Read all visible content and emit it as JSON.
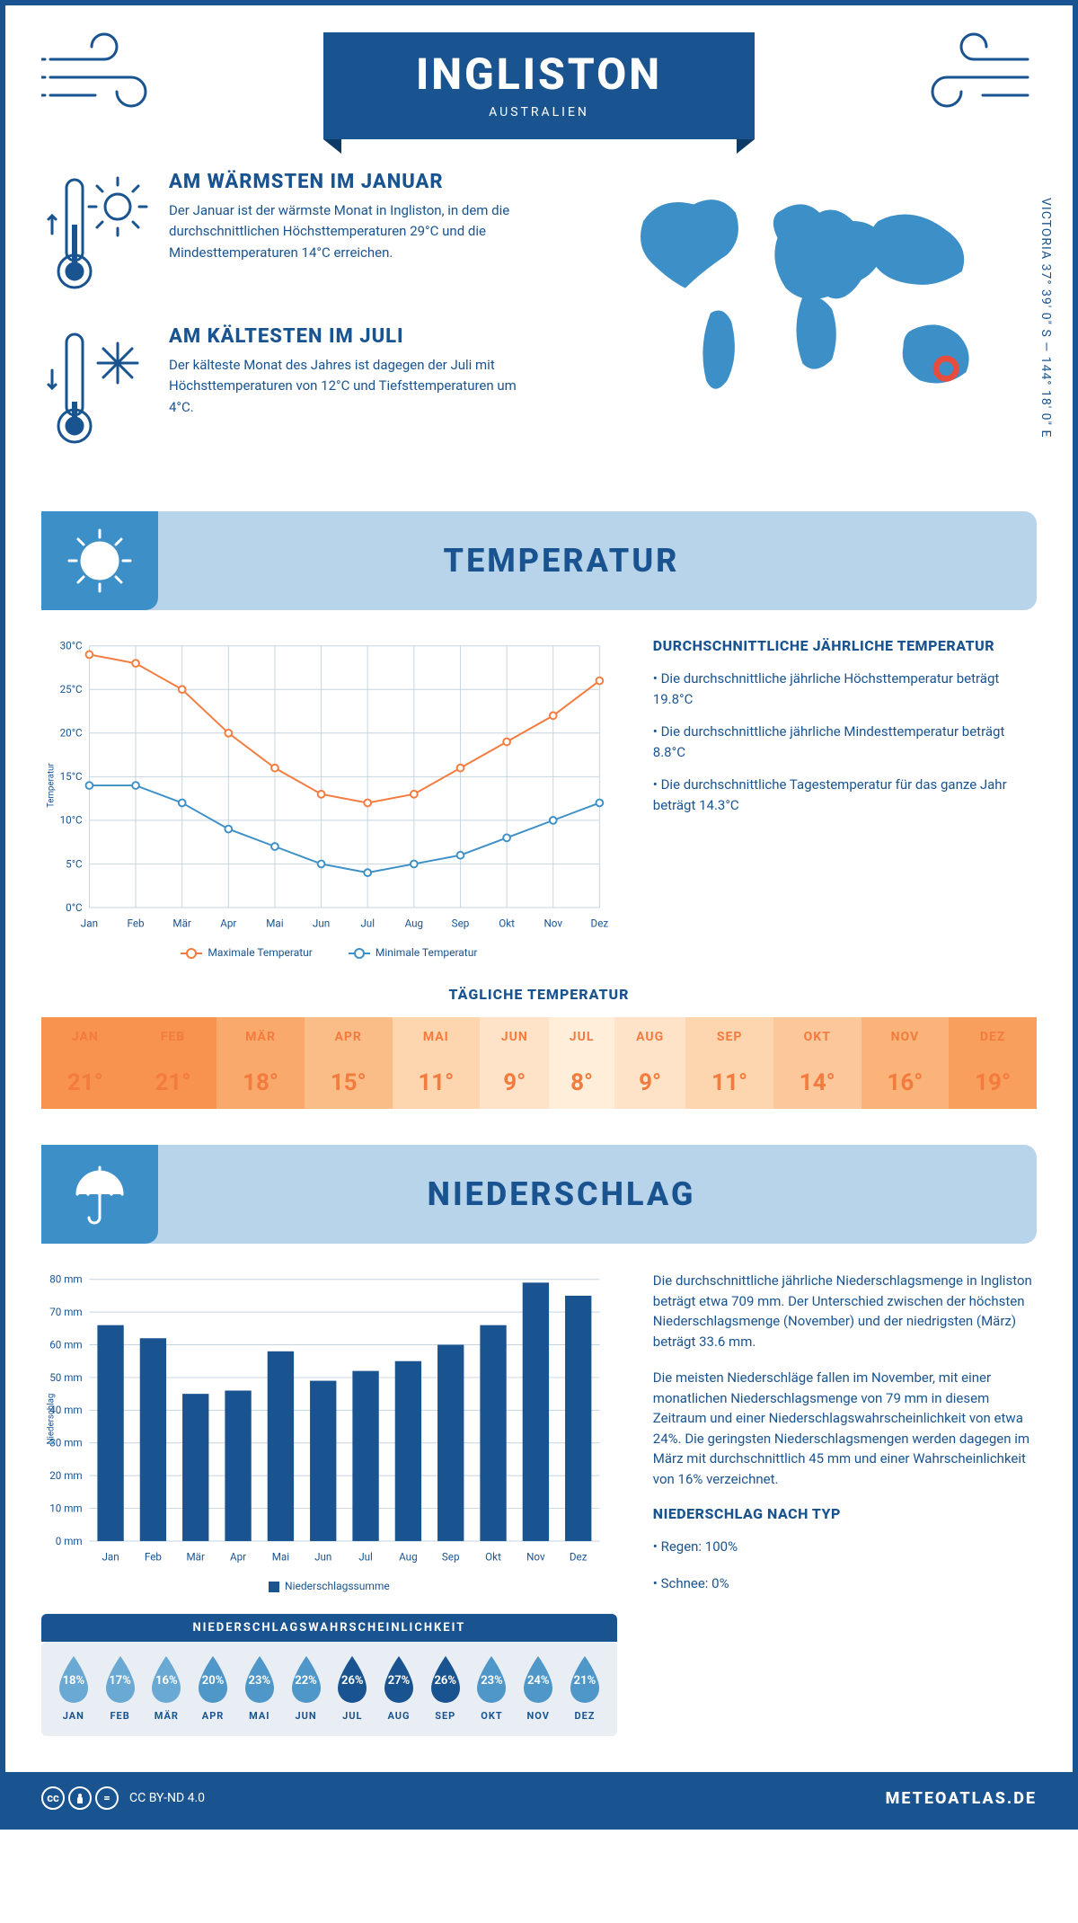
{
  "header": {
    "city": "INGLISTON",
    "country": "AUSTRALIEN"
  },
  "coords": {
    "lat": "37° 39' 0\" S",
    "lon": "144° 18' 0\" E",
    "region": "VICTORIA"
  },
  "facts": {
    "warm": {
      "title": "AM WÄRMSTEN IM JANUAR",
      "text": "Der Januar ist der wärmste Monat in Ingliston, in dem die durchschnittlichen Höchsttemperaturen 29°C und die Mindesttemperaturen 14°C erreichen."
    },
    "cold": {
      "title": "AM KÄLTESTEN IM JULI",
      "text": "Der kälteste Monat des Jahres ist dagegen der Juli mit Höchsttemperaturen von 12°C und Tiefsttemperaturen um 4°C."
    }
  },
  "months": [
    "Jan",
    "Feb",
    "Mär",
    "Apr",
    "Mai",
    "Jun",
    "Jul",
    "Aug",
    "Sep",
    "Okt",
    "Nov",
    "Dez"
  ],
  "months_upper": [
    "JAN",
    "FEB",
    "MÄR",
    "APR",
    "MAI",
    "JUN",
    "JUL",
    "AUG",
    "SEP",
    "OKT",
    "NOV",
    "DEZ"
  ],
  "temp_section": {
    "title": "TEMPERATUR",
    "chart": {
      "ylabel": "Temperatur",
      "ymin": 0,
      "ymax": 30,
      "ystep": 5,
      "series_max": {
        "label": "Maximale Temperatur",
        "color": "#f47b3e",
        "values": [
          29,
          28,
          25,
          20,
          16,
          13,
          12,
          13,
          16,
          19,
          22,
          26
        ]
      },
      "series_min": {
        "label": "Minimale Temperatur",
        "color": "#3d8fc7",
        "values": [
          14,
          14,
          12,
          9,
          7,
          5,
          4,
          5,
          6,
          8,
          10,
          12
        ]
      }
    },
    "side": {
      "title": "DURCHSCHNITTLICHE JÄHRLICHE TEMPERATUR",
      "bullets": [
        "• Die durchschnittliche jährliche Höchsttemperatur beträgt 19.8°C",
        "• Die durchschnittliche jährliche Mindesttemperatur beträgt 8.8°C",
        "• Die durchschnittliche Tagestemperatur für das ganze Jahr beträgt 14.3°C"
      ]
    },
    "daily_title": "TÄGLICHE TEMPERATUR",
    "daily_values": [
      "21°",
      "21°",
      "18°",
      "15°",
      "11°",
      "9°",
      "8°",
      "9°",
      "11°",
      "14°",
      "16°",
      "19°"
    ],
    "daily_colors": [
      "#f7934e",
      "#f7934e",
      "#f9a96c",
      "#fbbd88",
      "#fdd5ae",
      "#fee3c8",
      "#ffeeda",
      "#fee3c8",
      "#fdd5ae",
      "#fcc79a",
      "#fab378",
      "#f89f5d"
    ]
  },
  "precip_section": {
    "title": "NIEDERSCHLAG",
    "chart": {
      "ylabel": "Niederschlag",
      "ymin": 0,
      "ymax": 80,
      "ystep": 10,
      "color": "#1a5490",
      "legend": "Niederschlagssumme",
      "values": [
        66,
        62,
        45,
        46,
        58,
        49,
        52,
        55,
        60,
        66,
        79,
        75
      ]
    },
    "prob_title": "NIEDERSCHLAGSWAHRSCHEINLICHKEIT",
    "prob_values": [
      "18%",
      "17%",
      "16%",
      "20%",
      "23%",
      "22%",
      "26%",
      "27%",
      "26%",
      "23%",
      "24%",
      "21%"
    ],
    "prob_colors": [
      "#6aa9d4",
      "#6aa9d4",
      "#6aa9d4",
      "#4f96c9",
      "#4f96c9",
      "#4f96c9",
      "#1a5490",
      "#1a5490",
      "#1a5490",
      "#4f96c9",
      "#4f96c9",
      "#4f96c9"
    ],
    "side": {
      "p1": "Die durchschnittliche jährliche Niederschlagsmenge in Ingliston beträgt etwa 709 mm. Der Unterschied zwischen der höchsten Niederschlagsmenge (November) und der niedrigsten (März) beträgt 33.6 mm.",
      "p2": "Die meisten Niederschläge fallen im November, mit einer monatlichen Niederschlagsmenge von 79 mm in diesem Zeitraum und einer Niederschlagswahrscheinlichkeit von etwa 24%. Die geringsten Niederschlagsmengen werden dagegen im März mit durchschnittlich 45 mm und einer Wahrscheinlichkeit von 16% verzeichnet.",
      "type_title": "NIEDERSCHLAG NACH TYP",
      "type_bullets": [
        "• Regen: 100%",
        "• Schnee: 0%"
      ]
    }
  },
  "footer": {
    "license": "CC BY-ND 4.0",
    "site": "METEOATLAS.DE"
  }
}
